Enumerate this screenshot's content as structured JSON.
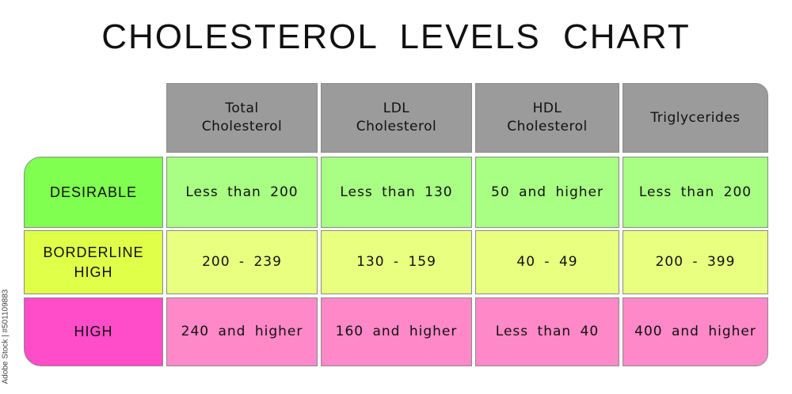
{
  "title": "CHOLESTEROL LEVELS CHART",
  "watermark": "Adobe Stock | #501109883",
  "chart_data": {
    "type": "table",
    "title": "CHOLESTEROL LEVELS CHART",
    "columns": [
      "Total\nCholesterol",
      "LDL\nCholesterol",
      "HDL\nCholesterol",
      "Triglycerides"
    ],
    "rows": [
      {
        "label": "DESIRABLE",
        "label_color": "#80ff50",
        "cell_color": "#a8ff84",
        "values": [
          "Less than 200",
          "Less than 130",
          "50 and higher",
          "Less than 200"
        ]
      },
      {
        "label": "BORDERLINE\nHIGH",
        "label_color": "#e0ff48",
        "cell_color": "#e8ff80",
        "values": [
          "200 - 239",
          "130 - 159",
          "40 - 49",
          "200 - 399"
        ]
      },
      {
        "label": "HIGH",
        "label_color": "#ff4cc8",
        "cell_color": "#ff88c8",
        "values": [
          "240 and higher",
          "160 and higher",
          "Less than 40",
          "400 and higher"
        ]
      }
    ],
    "header_color": "#9b9b9b"
  }
}
